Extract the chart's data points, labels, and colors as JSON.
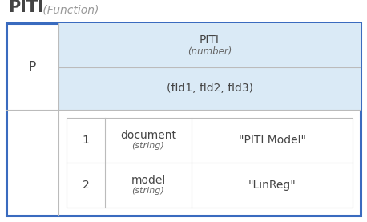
{
  "title_main": "PITI",
  "title_sub": " (Function)",
  "outer_border_color": "#3a6bbf",
  "outer_border_lw": 2.2,
  "inner_border_color": "#bbbbbb",
  "inner_border_lw": 0.8,
  "bg_white": "#ffffff",
  "bg_blue": "#daeaf6",
  "p_label": "P",
  "header_name": "PITI",
  "header_type": "(number)",
  "param_label": "(fld1, fld2, fld3)",
  "rows": [
    {
      "num": "1",
      "name": "document",
      "type": "(string)",
      "value": "\"PITI Model\""
    },
    {
      "num": "2",
      "name": "model",
      "type": "(string)",
      "value": "\"LinReg\""
    }
  ],
  "fig_w": 4.58,
  "fig_h": 2.77,
  "dpi": 100
}
